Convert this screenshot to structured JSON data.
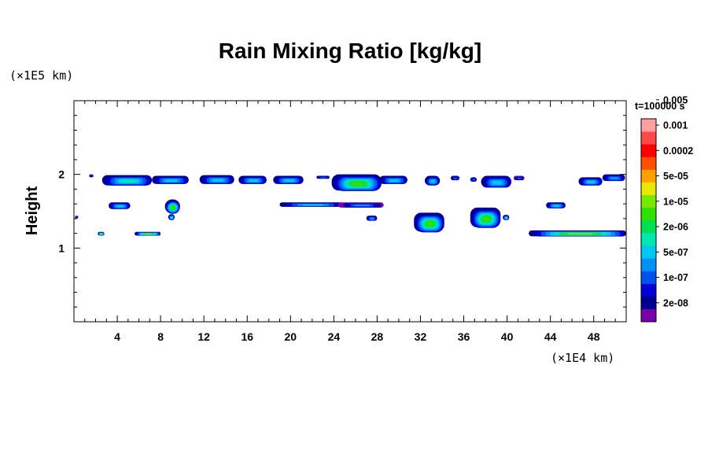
{
  "chart_data": {
    "type": "heatmap",
    "title": "Rain Mixing Ratio [kg/kg]",
    "ylabel": "Height",
    "xlabel": "",
    "x_scale_label": "(×1E4 km)",
    "y_scale_label": "(×1E5 km)",
    "time_label": "t=100000 s",
    "xlim": [
      0,
      51
    ],
    "ylim": [
      0,
      3
    ],
    "x_ticks": [
      4,
      8,
      12,
      16,
      20,
      24,
      28,
      32,
      36,
      40,
      44,
      48
    ],
    "y_ticks": [
      1,
      2
    ],
    "x_tick_labels": [
      "4",
      "8",
      "12",
      "16",
      "20",
      "24",
      "28",
      "32",
      "36",
      "40",
      "44",
      "48"
    ],
    "y_tick_labels": [
      "1",
      "2"
    ],
    "colorbar": {
      "colors": [
        "#7a00a8",
        "#000090",
        "#0000d8",
        "#0050f0",
        "#0090f8",
        "#00c8f0",
        "#00e8b0",
        "#00e050",
        "#30e000",
        "#78e800",
        "#e8e800",
        "#ffa000",
        "#ff5000",
        "#ff0000",
        "#ff4848",
        "#ffa0a0"
      ],
      "labels": [
        "2e-08",
        "1e-07",
        "5e-07",
        "2e-06",
        "1e-05",
        "5e-05",
        "0.0002",
        "0.001",
        "0.005"
      ],
      "label_positions": [
        1.5,
        3.5,
        5.5,
        7.5,
        9.5,
        11.5,
        13.5,
        15.5,
        17.5
      ]
    },
    "regions": [
      {
        "x0": 2.6,
        "x1": 7.2,
        "y0": 1.85,
        "y1": 1.99,
        "core": 1,
        "peak": 6
      },
      {
        "x0": 7.2,
        "x1": 10.6,
        "y0": 1.87,
        "y1": 1.98,
        "core": 1,
        "peak": 5
      },
      {
        "x0": 11.6,
        "x1": 14.8,
        "y0": 1.87,
        "y1": 1.99,
        "core": 1,
        "peak": 5
      },
      {
        "x0": 15.2,
        "x1": 17.8,
        "y0": 1.87,
        "y1": 1.98,
        "core": 1,
        "peak": 5
      },
      {
        "x0": 18.4,
        "x1": 21.2,
        "y0": 1.87,
        "y1": 1.98,
        "core": 1,
        "peak": 5
      },
      {
        "x0": 22.4,
        "x1": 23.6,
        "y0": 1.94,
        "y1": 1.98,
        "core": 1,
        "peak": 3
      },
      {
        "x0": 23.8,
        "x1": 28.4,
        "y0": 1.78,
        "y1": 2.0,
        "core": 1,
        "peak": 8
      },
      {
        "x0": 28.2,
        "x1": 30.8,
        "y0": 1.87,
        "y1": 1.98,
        "core": 1,
        "peak": 5
      },
      {
        "x0": 32.4,
        "x1": 33.8,
        "y0": 1.85,
        "y1": 1.98,
        "core": 1,
        "peak": 5
      },
      {
        "x0": 34.8,
        "x1": 35.6,
        "y0": 1.92,
        "y1": 1.98,
        "core": 1,
        "peak": 3
      },
      {
        "x0": 36.6,
        "x1": 37.2,
        "y0": 1.9,
        "y1": 1.96,
        "core": 1,
        "peak": 3
      },
      {
        "x0": 37.6,
        "x1": 40.4,
        "y0": 1.82,
        "y1": 1.98,
        "core": 1,
        "peak": 5
      },
      {
        "x0": 40.6,
        "x1": 41.6,
        "y0": 1.92,
        "y1": 1.98,
        "core": 0,
        "peak": 3
      },
      {
        "x0": 46.6,
        "x1": 48.8,
        "y0": 1.85,
        "y1": 1.96,
        "core": 1,
        "peak": 5
      },
      {
        "x0": 48.8,
        "x1": 50.9,
        "y0": 1.91,
        "y1": 2.0,
        "core": 1,
        "peak": 4
      },
      {
        "x0": 3.2,
        "x1": 5.2,
        "y0": 1.53,
        "y1": 1.62,
        "core": 1,
        "peak": 5
      },
      {
        "x0": 8.4,
        "x1": 9.8,
        "y0": 1.47,
        "y1": 1.66,
        "core": 1,
        "peak": 8
      },
      {
        "x0": 8.7,
        "x1": 9.3,
        "y0": 1.38,
        "y1": 1.46,
        "core": 1,
        "peak": 6
      },
      {
        "x0": 19.0,
        "x1": 24.8,
        "y0": 1.56,
        "y1": 1.62,
        "core": 1,
        "peak": 5
      },
      {
        "x0": 24.4,
        "x1": 28.6,
        "y0": 1.55,
        "y1": 1.62,
        "core": 0,
        "peak": 4
      },
      {
        "x0": 31.4,
        "x1": 34.2,
        "y0": 1.22,
        "y1": 1.48,
        "core": 1,
        "peak": 8
      },
      {
        "x0": 36.6,
        "x1": 39.4,
        "y0": 1.28,
        "y1": 1.55,
        "core": 1,
        "peak": 8
      },
      {
        "x0": 39.6,
        "x1": 40.2,
        "y0": 1.38,
        "y1": 1.45,
        "core": 1,
        "peak": 6
      },
      {
        "x0": 43.6,
        "x1": 45.4,
        "y0": 1.54,
        "y1": 1.62,
        "core": 1,
        "peak": 5
      },
      {
        "x0": 5.6,
        "x1": 8.0,
        "y0": 1.17,
        "y1": 1.22,
        "core": 1,
        "peak": 9
      },
      {
        "x0": 2.2,
        "x1": 2.8,
        "y0": 1.17,
        "y1": 1.22,
        "core": 1,
        "peak": 9
      },
      {
        "x0": 42.0,
        "x1": 51.0,
        "y0": 1.16,
        "y1": 1.24,
        "core": 1,
        "peak": 9
      },
      {
        "x0": 27.0,
        "x1": 28.0,
        "y0": 1.37,
        "y1": 1.44,
        "core": 1,
        "peak": 4
      },
      {
        "x0": 0.1,
        "x1": 0.4,
        "y0": 1.4,
        "y1": 1.44,
        "core": 0,
        "peak": 3
      },
      {
        "x0": 1.4,
        "x1": 1.8,
        "y0": 1.96,
        "y1": 2.0,
        "core": 0,
        "peak": 2
      }
    ]
  }
}
